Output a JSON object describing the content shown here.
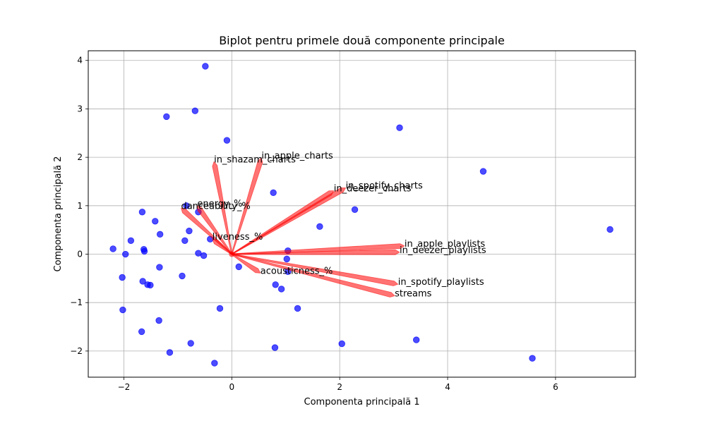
{
  "chart_data": {
    "type": "scatter",
    "title": "Biplot pentru primele două componente principale",
    "xlabel": "Componenta principală 1",
    "ylabel": "Componenta principală 2",
    "xlim": [
      -2.66,
      7.48
    ],
    "ylim": [
      -2.54,
      4.2
    ],
    "xticks": [
      -2,
      0,
      2,
      4,
      6
    ],
    "yticks": [
      -2,
      -1,
      0,
      1,
      2,
      3,
      4
    ],
    "xtick_labels": [
      "−2",
      "0",
      "2",
      "4",
      "6"
    ],
    "ytick_labels": [
      "−2",
      "−1",
      "0",
      "1",
      "2",
      "3",
      "4"
    ],
    "grid": true,
    "point_color": "#0000ff",
    "arrow_color": "#ff0000",
    "points": [
      {
        "x": -0.49,
        "y": 3.88
      },
      {
        "x": -0.68,
        "y": 2.96
      },
      {
        "x": -1.21,
        "y": 2.84
      },
      {
        "x": -0.09,
        "y": 2.35
      },
      {
        "x": 3.11,
        "y": 2.61
      },
      {
        "x": 4.66,
        "y": 1.71
      },
      {
        "x": 0.77,
        "y": 1.27
      },
      {
        "x": 2.28,
        "y": 0.92
      },
      {
        "x": 7.01,
        "y": 0.51
      },
      {
        "x": 1.63,
        "y": 0.57
      },
      {
        "x": -1.66,
        "y": 0.87
      },
      {
        "x": -1.42,
        "y": 0.68
      },
      {
        "x": -0.62,
        "y": 0.87
      },
      {
        "x": -0.84,
        "y": 1.0
      },
      {
        "x": -0.79,
        "y": 0.48
      },
      {
        "x": -1.33,
        "y": 0.41
      },
      {
        "x": -1.87,
        "y": 0.28
      },
      {
        "x": -0.87,
        "y": 0.28
      },
      {
        "x": -0.4,
        "y": 0.31
      },
      {
        "x": -2.2,
        "y": 0.11
      },
      {
        "x": -1.63,
        "y": 0.1
      },
      {
        "x": -1.62,
        "y": 0.06
      },
      {
        "x": -1.97,
        "y": 0.0
      },
      {
        "x": -0.62,
        "y": 0.02
      },
      {
        "x": -0.52,
        "y": -0.03
      },
      {
        "x": 1.04,
        "y": 0.07
      },
      {
        "x": 1.02,
        "y": -0.1
      },
      {
        "x": 0.13,
        "y": -0.26
      },
      {
        "x": -1.34,
        "y": -0.27
      },
      {
        "x": 1.04,
        "y": -0.36
      },
      {
        "x": -2.03,
        "y": -0.48
      },
      {
        "x": -0.92,
        "y": -0.45
      },
      {
        "x": -1.65,
        "y": -0.56
      },
      {
        "x": -1.56,
        "y": -0.63
      },
      {
        "x": -1.51,
        "y": -0.64
      },
      {
        "x": 0.81,
        "y": -0.63
      },
      {
        "x": 0.92,
        "y": -0.72
      },
      {
        "x": -2.02,
        "y": -1.15
      },
      {
        "x": -0.22,
        "y": -1.12
      },
      {
        "x": 1.22,
        "y": -1.12
      },
      {
        "x": -1.35,
        "y": -1.37
      },
      {
        "x": -1.67,
        "y": -1.6
      },
      {
        "x": -0.76,
        "y": -1.84
      },
      {
        "x": 0.8,
        "y": -1.93
      },
      {
        "x": 2.04,
        "y": -1.85
      },
      {
        "x": 3.42,
        "y": -1.77
      },
      {
        "x": -1.15,
        "y": -2.03
      },
      {
        "x": -0.32,
        "y": -2.25
      },
      {
        "x": 5.57,
        "y": -2.15
      }
    ],
    "loadings": [
      {
        "name": "in_apple_charts",
        "x": 0.55,
        "y": 1.99
      },
      {
        "name": "in_shazam_charts",
        "x": -0.33,
        "y": 1.91
      },
      {
        "name": "in_spotify_charts",
        "x": 2.11,
        "y": 1.37
      },
      {
        "name": "in_deezer_charts",
        "x": 1.89,
        "y": 1.31
      },
      {
        "name": "energy_%",
        "x": -0.64,
        "y": 1.0
      },
      {
        "name": "danceability_%",
        "x": -0.94,
        "y": 0.95
      },
      {
        "name": "liveness_%",
        "x": -0.36,
        "y": 0.31
      },
      {
        "name": "in_apple_playlists",
        "x": 3.2,
        "y": 0.17
      },
      {
        "name": "in_deezer_playlists",
        "x": 3.11,
        "y": 0.04
      },
      {
        "name": "acousticness_%",
        "x": 0.53,
        "y": -0.39
      },
      {
        "name": "in_spotify_playlists",
        "x": 3.08,
        "y": -0.62
      },
      {
        "name": "streams",
        "x": 3.02,
        "y": -0.86
      }
    ]
  }
}
